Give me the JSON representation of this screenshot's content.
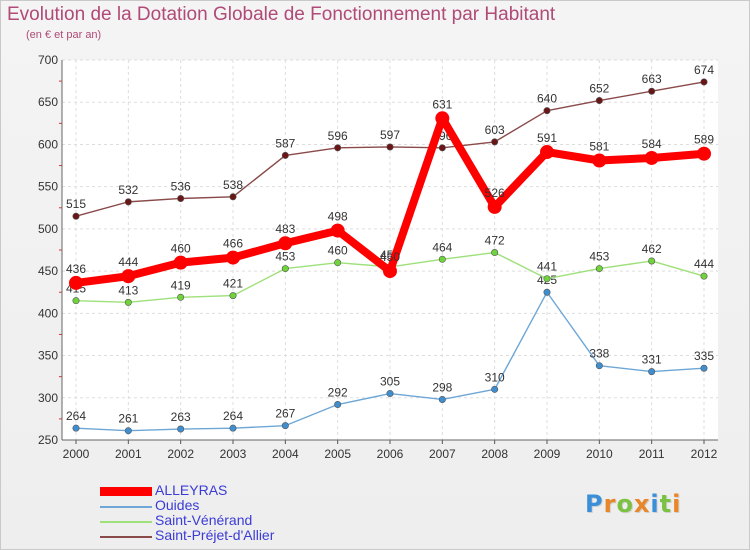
{
  "chart_data": {
    "type": "line",
    "title": "Evolution de la Dotation Globale de Fonctionnement par Habitant",
    "subtitle": "(en € et par an)",
    "categories": [
      "2000",
      "2001",
      "2002",
      "2003",
      "2004",
      "2005",
      "2006",
      "2007",
      "2008",
      "2009",
      "2010",
      "2011",
      "2012"
    ],
    "ylim": [
      250,
      700
    ],
    "yticks": [
      250,
      300,
      350,
      400,
      450,
      500,
      550,
      600,
      650,
      700
    ],
    "grid": true,
    "legend_position": "bottom-left",
    "series": [
      {
        "name": "ALLEYRAS",
        "color": "#ff0000",
        "point_color": "#ff0000",
        "emphasis": true,
        "values": [
          436,
          444,
          460,
          466,
          483,
          498,
          450,
          631,
          526,
          591,
          581,
          584,
          589
        ]
      },
      {
        "name": "Ouides",
        "color": "#6ea7d6",
        "point_color": "#3f8fd0",
        "emphasis": false,
        "values": [
          264,
          261,
          263,
          264,
          267,
          292,
          305,
          298,
          310,
          425,
          338,
          331,
          335
        ]
      },
      {
        "name": "Saint-Vénérand",
        "color": "#9ee07a",
        "point_color": "#6fd43b",
        "emphasis": false,
        "values": [
          415,
          413,
          419,
          421,
          453,
          460,
          455,
          464,
          472,
          441,
          453,
          462,
          444
        ]
      },
      {
        "name": "Saint-Préjet-d'Allier",
        "color": "#8a4a4a",
        "point_color": "#6b1616",
        "emphasis": false,
        "values": [
          515,
          532,
          536,
          538,
          587,
          596,
          597,
          596,
          603,
          640,
          652,
          663,
          674
        ]
      }
    ]
  },
  "logo": {
    "letters": [
      {
        "char": "P",
        "color": "#3a8fd8"
      },
      {
        "char": "r",
        "color": "#e8862a"
      },
      {
        "char": "o",
        "color": "#7cc242"
      },
      {
        "char": "x",
        "color": "#e8862a"
      },
      {
        "char": "i",
        "color": "#3a8fd8"
      },
      {
        "char": "t",
        "color": "#7cc242"
      },
      {
        "char": "i",
        "color": "#e8862a"
      }
    ]
  }
}
